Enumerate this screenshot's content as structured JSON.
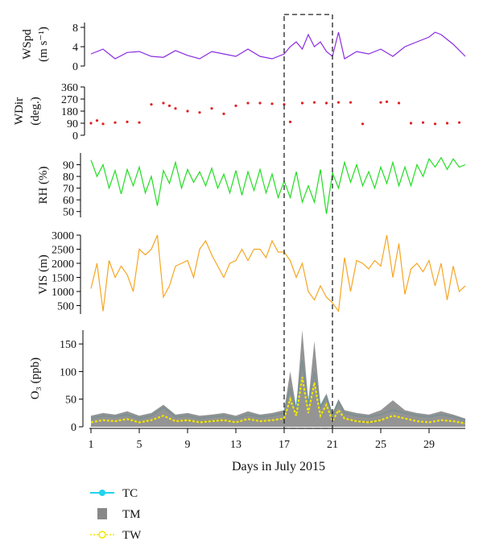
{
  "figure": {
    "xlabel": "Days in July 2015",
    "x_ticks": [
      "1",
      "5",
      "9",
      "13",
      "17",
      "21",
      "25",
      "29"
    ],
    "highlight": {
      "x_range": [
        17,
        21
      ],
      "style": "dashed-box"
    }
  },
  "chart_data": [
    {
      "type": "line",
      "ylabel": {
        "line1": "WSpd",
        "line2": "(m s⁻¹)"
      },
      "ylim": [
        0,
        9
      ],
      "y_ticks": [
        "0",
        "4",
        "8"
      ],
      "color": "#8a2be2",
      "series": [
        {
          "x": [
            1,
            2,
            3,
            4,
            5,
            6,
            7,
            8,
            9,
            10,
            11,
            12,
            13,
            14,
            15,
            16,
            17,
            17.5,
            18,
            18.5,
            19,
            19.5,
            20,
            20.5,
            21,
            21.5,
            22,
            23,
            24,
            25,
            26,
            27,
            28,
            29,
            29.5,
            30,
            30.5,
            31,
            32
          ],
          "values": [
            2.5,
            3.5,
            1.5,
            2.8,
            3,
            2,
            1.8,
            3.2,
            2.2,
            1.5,
            3,
            2.5,
            2,
            3.5,
            2,
            1.5,
            2.5,
            4,
            5,
            3.5,
            6.5,
            4,
            5,
            3,
            2,
            7,
            1.5,
            3,
            2.5,
            3.5,
            2,
            4,
            5,
            6,
            7,
            6.5,
            5.5,
            4.5,
            2
          ]
        }
      ]
    },
    {
      "type": "scatter",
      "ylabel": {
        "line1": "WDir",
        "line2": "(deg.)"
      },
      "ylim": [
        0,
        360
      ],
      "y_ticks": [
        "0",
        "90",
        "180",
        "270",
        "360"
      ],
      "color": "#e02020",
      "series": [
        {
          "x": [
            1,
            1.5,
            2,
            3,
            4,
            5,
            6,
            7,
            7.5,
            8,
            9,
            10,
            11,
            12,
            13,
            14,
            15,
            16,
            17,
            17.5,
            18.5,
            19.5,
            20.5,
            21.5,
            22.5,
            23.5,
            25,
            25.5,
            26.5,
            27.5,
            28.5,
            29.5,
            30.5,
            31.5
          ],
          "values": [
            90,
            110,
            85,
            95,
            100,
            95,
            230,
            240,
            220,
            200,
            180,
            170,
            200,
            160,
            220,
            240,
            240,
            235,
            230,
            100,
            240,
            245,
            240,
            245,
            245,
            85,
            245,
            250,
            240,
            90,
            95,
            85,
            90,
            95
          ]
        }
      ]
    },
    {
      "type": "line",
      "ylabel": "RH (%)",
      "ylim": [
        45,
        100
      ],
      "y_ticks": [
        "50",
        "60",
        "70",
        "80",
        "90"
      ],
      "color": "#22dd22",
      "series": [
        {
          "x": [
            1,
            1.5,
            2,
            2.5,
            3,
            3.5,
            4,
            4.5,
            5,
            5.5,
            6,
            6.5,
            7,
            7.5,
            8,
            8.5,
            9,
            9.5,
            10,
            10.5,
            11,
            11.5,
            12,
            12.5,
            13,
            13.5,
            14,
            14.5,
            15,
            15.5,
            16,
            16.5,
            17,
            17.5,
            18,
            18.5,
            19,
            19.5,
            20,
            20.5,
            21,
            21.5,
            22,
            22.5,
            23,
            23.5,
            24,
            24.5,
            25,
            25.5,
            26,
            26.5,
            27,
            27.5,
            28,
            28.5,
            29,
            29.5,
            30,
            30.5,
            31,
            31.5,
            32
          ],
          "values": [
            94,
            80,
            90,
            70,
            85,
            65,
            86,
            72,
            88,
            66,
            80,
            55,
            85,
            74,
            92,
            70,
            86,
            75,
            84,
            72,
            87,
            70,
            82,
            66,
            85,
            64,
            84,
            68,
            86,
            66,
            82,
            62,
            76,
            62,
            84,
            58,
            72,
            58,
            86,
            48,
            83,
            70,
            92,
            75,
            90,
            72,
            84,
            70,
            88,
            74,
            92,
            72,
            88,
            72,
            90,
            80,
            95,
            88,
            96,
            86,
            95,
            88,
            90
          ]
        }
      ]
    },
    {
      "type": "line",
      "ylabel": "VIS (m)",
      "ylim": [
        200,
        3000
      ],
      "y_ticks": [
        "500",
        "1000",
        "1500",
        "2000",
        "2500",
        "3000"
      ],
      "color": "#f5a623",
      "series": [
        {
          "x": [
            1,
            1.5,
            2,
            2.5,
            3,
            3.5,
            4,
            4.5,
            5,
            5.5,
            6,
            6.5,
            7,
            7.5,
            8,
            8.5,
            9,
            9.5,
            10,
            10.5,
            11,
            11.5,
            12,
            12.5,
            13,
            13.5,
            14,
            14.5,
            15,
            15.5,
            16,
            16.5,
            17,
            17.5,
            18,
            18.5,
            19,
            19.5,
            20,
            20.5,
            21,
            21.5,
            22,
            22.5,
            23,
            23.5,
            24,
            24.5,
            25,
            25.5,
            26,
            26.5,
            27,
            27.5,
            28,
            28.5,
            29,
            29.5,
            30,
            30.5,
            31,
            31.5,
            32
          ],
          "values": [
            1100,
            2000,
            300,
            2100,
            1500,
            1900,
            1600,
            1000,
            2500,
            2300,
            2500,
            3000,
            800,
            1200,
            1900,
            2000,
            2100,
            1500,
            2500,
            2800,
            2300,
            1900,
            1500,
            2000,
            2100,
            2500,
            2100,
            2500,
            2500,
            2200,
            2800,
            2400,
            2400,
            2100,
            1500,
            2000,
            1000,
            700,
            1200,
            800,
            600,
            300,
            2200,
            1000,
            2100,
            2000,
            1800,
            2100,
            1900,
            3000,
            1500,
            2700,
            900,
            1800,
            2000,
            1700,
            2100,
            1200,
            2000,
            700,
            1900,
            1000,
            1200
          ]
        }
      ]
    },
    {
      "type": "line",
      "ylabel": "O₃ (ppb)",
      "ylim": [
        0,
        175
      ],
      "y_ticks": [
        "0",
        "50",
        "100",
        "150"
      ],
      "series": [
        {
          "name": "TC",
          "color": "#22d3ee",
          "x": [
            1,
            2,
            3,
            4,
            5,
            6,
            7,
            8,
            9,
            10,
            11,
            12,
            13,
            14,
            15,
            16,
            17,
            17.5,
            18,
            18.5,
            19,
            19.5,
            20,
            20.5,
            21,
            21.5,
            22,
            23,
            24,
            25,
            26,
            27,
            28,
            29,
            30,
            31,
            32
          ],
          "values": [
            15,
            20,
            18,
            22,
            15,
            20,
            35,
            18,
            20,
            15,
            18,
            20,
            15,
            22,
            18,
            20,
            25,
            70,
            30,
            120,
            40,
            100,
            35,
            55,
            20,
            45,
            25,
            20,
            18,
            22,
            30,
            25,
            20,
            18,
            22,
            18,
            12
          ]
        },
        {
          "name": "TM",
          "color": "#888888",
          "x": [
            1,
            2,
            3,
            4,
            5,
            6,
            7,
            8,
            9,
            10,
            11,
            12,
            13,
            14,
            15,
            16,
            17,
            17.5,
            18,
            18.5,
            19,
            19.5,
            20,
            20.5,
            21,
            21.5,
            22,
            23,
            24,
            25,
            26,
            27,
            28,
            29,
            30,
            31,
            32
          ],
          "values": [
            20,
            25,
            22,
            28,
            20,
            25,
            40,
            22,
            25,
            20,
            22,
            25,
            20,
            28,
            22,
            25,
            30,
            100,
            35,
            175,
            45,
            155,
            40,
            60,
            25,
            50,
            30,
            25,
            22,
            30,
            48,
            30,
            25,
            22,
            28,
            22,
            15
          ]
        },
        {
          "name": "TW",
          "color": "#f2e600",
          "x": [
            1,
            2,
            3,
            4,
            5,
            6,
            7,
            8,
            9,
            10,
            11,
            12,
            13,
            14,
            15,
            16,
            17,
            17.5,
            18,
            18.5,
            19,
            19.5,
            20,
            20.5,
            21,
            21.5,
            22,
            23,
            24,
            25,
            26,
            27,
            28,
            29,
            30,
            31,
            32
          ],
          "values": [
            8,
            12,
            10,
            14,
            8,
            12,
            20,
            10,
            12,
            8,
            10,
            12,
            8,
            14,
            10,
            12,
            15,
            50,
            20,
            90,
            25,
            80,
            20,
            40,
            10,
            30,
            15,
            10,
            8,
            12,
            20,
            15,
            10,
            8,
            12,
            10,
            6
          ]
        }
      ]
    }
  ],
  "legend": [
    {
      "label": "TC",
      "color": "#22d3ee",
      "style": "line-dot"
    },
    {
      "label": "TM",
      "color": "#888888",
      "style": "bar"
    },
    {
      "label": "TW",
      "color": "#f2e600",
      "style": "dashed-circle"
    }
  ]
}
